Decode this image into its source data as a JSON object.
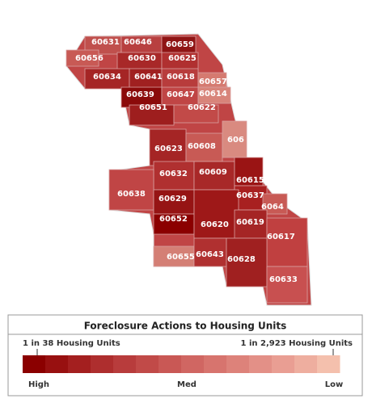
{
  "zip_areas": [
    {
      "label": "60631",
      "color": "#c0504d"
    },
    {
      "label": "60646",
      "color": "#b84040"
    },
    {
      "label": "60659",
      "color": "#8f1414"
    },
    {
      "label": "60656",
      "color": "#c85a55"
    },
    {
      "label": "60630",
      "color": "#a82828"
    },
    {
      "label": "60625",
      "color": "#b03030"
    },
    {
      "label": "60634",
      "color": "#a52525"
    },
    {
      "label": "60641",
      "color": "#a02020"
    },
    {
      "label": "60618",
      "color": "#b83c3c"
    },
    {
      "label": "60657",
      "color": "#d57a70"
    },
    {
      "label": "60639",
      "color": "#8b0a0a"
    },
    {
      "label": "60647",
      "color": "#c04545"
    },
    {
      "label": "60614",
      "color": "#d8847a"
    },
    {
      "label": "60651",
      "color": "#9e1e1e"
    },
    {
      "label": "60622",
      "color": "#c24a48"
    },
    {
      "label": "60623",
      "color": "#a52525"
    },
    {
      "label": "60608",
      "color": "#c85a55"
    },
    {
      "label": "606",
      "color": "#d98a80"
    },
    {
      "label": "60632",
      "color": "#b03030"
    },
    {
      "label": "60609",
      "color": "#a82828"
    },
    {
      "label": "60615",
      "color": "#9a1414"
    },
    {
      "label": "60638",
      "color": "#c04545"
    },
    {
      "label": "60629",
      "color": "#961414"
    },
    {
      "label": "60637",
      "color": "#a82020"
    },
    {
      "label": "6064",
      "color": "#c85a55"
    },
    {
      "label": "60652",
      "color": "#8b0000"
    },
    {
      "label": "60620",
      "color": "#9e1818"
    },
    {
      "label": "60619",
      "color": "#a52525"
    },
    {
      "label": "60617",
      "color": "#c04040"
    },
    {
      "label": "60655",
      "color": "#d47f75"
    },
    {
      "label": "60643",
      "color": "#b03030"
    },
    {
      "label": "60628",
      "color": "#a02020"
    },
    {
      "label": "60633",
      "color": "#c85050"
    }
  ],
  "legend": {
    "title": "Foreclosure Actions to Housing Units",
    "high_end_label": "1 in 38 Housing Units",
    "low_end_label": "1 in 2,923 Housing Units",
    "left_label": "High",
    "mid_label": "Med",
    "right_label": "Low",
    "colors": [
      "#8b0000",
      "#981010",
      "#a41f1f",
      "#ae2e2e",
      "#b83c3c",
      "#c14a48",
      "#c95855",
      "#d06662",
      "#d7746e",
      "#dd827a",
      "#e39087",
      "#e99e93",
      "#eeae9f",
      "#f4c0ad"
    ]
  }
}
